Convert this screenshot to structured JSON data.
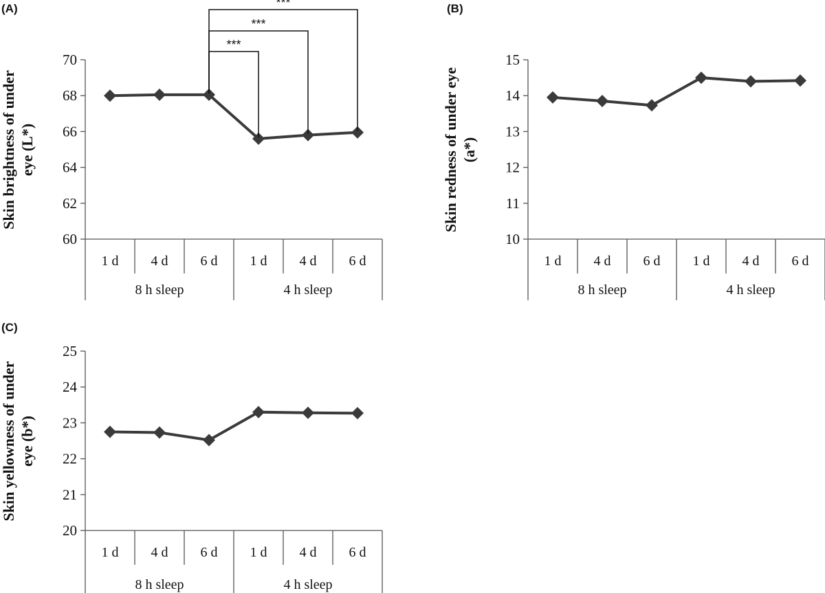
{
  "chart_data": [
    {
      "type": "line",
      "panel_label": "(A)",
      "ylabel_lines": [
        "Skin brightness of under",
        "eye (L*)"
      ],
      "ylim": [
        60,
        70
      ],
      "yticks": [
        60,
        62,
        64,
        66,
        68,
        70
      ],
      "categories": [
        "1 d",
        "4 d",
        "6 d",
        "1 d",
        "4 d",
        "6 d"
      ],
      "groups": [
        {
          "label": "8 h sleep",
          "span": [
            0,
            2
          ]
        },
        {
          "label": "4 h sleep",
          "span": [
            3,
            5
          ]
        }
      ],
      "values": [
        68.0,
        68.05,
        68.05,
        65.6,
        65.8,
        65.95
      ],
      "significance": [
        {
          "from": 2,
          "to": 3,
          "label": "***"
        },
        {
          "from": 2,
          "to": 4,
          "label": "***"
        },
        {
          "from": 2,
          "to": 5,
          "label": "***"
        }
      ],
      "color": "#3a3a3a"
    },
    {
      "type": "line",
      "panel_label": "(B)",
      "ylabel_lines": [
        "Skin redness of under eye",
        "(a*)"
      ],
      "ylim": [
        10,
        15
      ],
      "yticks": [
        10,
        11,
        12,
        13,
        14,
        15
      ],
      "categories": [
        "1 d",
        "4 d",
        "6 d",
        "1 d",
        "4 d",
        "6 d"
      ],
      "groups": [
        {
          "label": "8 h sleep",
          "span": [
            0,
            2
          ]
        },
        {
          "label": "4 h sleep",
          "span": [
            3,
            5
          ]
        }
      ],
      "values": [
        13.95,
        13.85,
        13.73,
        14.5,
        14.4,
        14.42
      ],
      "significance": [],
      "color": "#3a3a3a"
    },
    {
      "type": "line",
      "panel_label": "(C)",
      "ylabel_lines": [
        "Skin yellowness of under",
        "eye (b*)"
      ],
      "ylim": [
        20,
        25
      ],
      "yticks": [
        20,
        21,
        22,
        23,
        24,
        25
      ],
      "categories": [
        "1 d",
        "4 d",
        "6 d",
        "1 d",
        "4 d",
        "6 d"
      ],
      "groups": [
        {
          "label": "8 h sleep",
          "span": [
            0,
            2
          ]
        },
        {
          "label": "4 h sleep",
          "span": [
            3,
            5
          ]
        }
      ],
      "values": [
        22.75,
        22.73,
        22.52,
        23.3,
        23.28,
        23.27
      ],
      "significance": [],
      "color": "#3a3a3a"
    }
  ]
}
